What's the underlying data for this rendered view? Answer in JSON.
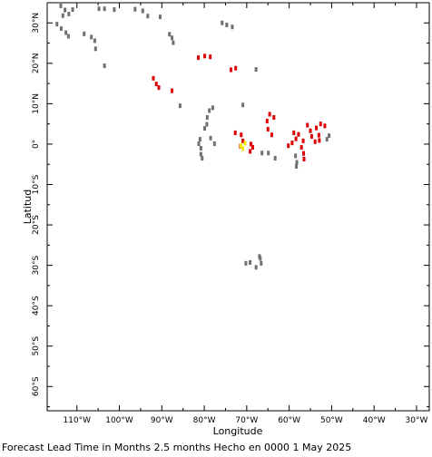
{
  "chart_data": {
    "type": "scatter",
    "title": "",
    "xlabel": "Longitude",
    "ylabel": "Latitud",
    "xlim": [
      -117,
      -27
    ],
    "ylim": [
      -66,
      35
    ],
    "x_ticks": [
      {
        "value": -110,
        "label": "110°W"
      },
      {
        "value": -100,
        "label": "100°W"
      },
      {
        "value": -90,
        "label": "90°W"
      },
      {
        "value": -80,
        "label": "80°W"
      },
      {
        "value": -70,
        "label": "70°W"
      },
      {
        "value": -60,
        "label": "60°W"
      },
      {
        "value": -50,
        "label": "50°W"
      },
      {
        "value": -40,
        "label": "40°W"
      },
      {
        "value": -30,
        "label": "30°W"
      }
    ],
    "y_ticks": [
      {
        "value": 30,
        "label": "30°N"
      },
      {
        "value": 20,
        "label": "20°N"
      },
      {
        "value": 10,
        "label": "10°N"
      },
      {
        "value": 0,
        "label": "0°"
      },
      {
        "value": -10,
        "label": "10°S"
      },
      {
        "value": -20,
        "label": "20°S"
      },
      {
        "value": -30,
        "label": "30°S"
      },
      {
        "value": -40,
        "label": "40°S"
      },
      {
        "value": -50,
        "label": "50°S"
      },
      {
        "value": -60,
        "label": "60°S"
      }
    ],
    "grid": false,
    "series": [
      {
        "color": "#707070",
        "points": [
          [
            -113.8,
            34.2
          ],
          [
            -112.8,
            33.2
          ],
          [
            -113.3,
            31.8
          ],
          [
            -111.9,
            32.2
          ],
          [
            -111.0,
            33.3
          ],
          [
            -114.7,
            29.7
          ],
          [
            -113.7,
            28.6
          ],
          [
            -112.6,
            27.6
          ],
          [
            -112.0,
            26.7
          ],
          [
            -108.3,
            27.3
          ],
          [
            -106.6,
            26.5
          ],
          [
            -105.8,
            25.6
          ],
          [
            -105.6,
            23.6
          ],
          [
            -103.5,
            19.4
          ],
          [
            -104.8,
            33.5
          ],
          [
            -103.5,
            33.5
          ],
          [
            -101.2,
            33.3
          ],
          [
            -96.3,
            33.4
          ],
          [
            -94.5,
            33.0
          ],
          [
            -93.3,
            31.7
          ],
          [
            -90.4,
            31.5
          ],
          [
            -88.2,
            27.2
          ],
          [
            -87.6,
            26.3
          ],
          [
            -87.3,
            25.1
          ],
          [
            -75.8,
            30.0
          ],
          [
            -74.7,
            29.5
          ],
          [
            -73.4,
            29.0
          ],
          [
            -85.7,
            9.5
          ],
          [
            -70.9,
            9.7
          ],
          [
            -67.8,
            18.5
          ],
          [
            -78.0,
            9.0
          ],
          [
            -78.8,
            8.3
          ],
          [
            -79.3,
            6.6
          ],
          [
            -79.4,
            4.9
          ],
          [
            -79.9,
            3.9
          ],
          [
            -78.5,
            1.5
          ],
          [
            -77.6,
            0.1
          ],
          [
            -81.0,
            1.2
          ],
          [
            -81.3,
            0.1
          ],
          [
            -80.8,
            -1.0
          ],
          [
            -80.8,
            -2.5
          ],
          [
            -80.5,
            -3.5
          ],
          [
            -66.4,
            -2.2
          ],
          [
            -64.9,
            -2.2
          ],
          [
            -63.3,
            -3.5
          ],
          [
            -58.5,
            -2.9
          ],
          [
            -58.2,
            -4.5
          ],
          [
            -58.3,
            -5.5
          ],
          [
            -51.1,
            1.2
          ],
          [
            -50.6,
            2.1
          ],
          [
            -67.0,
            -27.8
          ],
          [
            -66.6,
            -29.5
          ],
          [
            -67.8,
            -30.5
          ],
          [
            -69.2,
            -29.3
          ],
          [
            -70.2,
            -29.5
          ],
          [
            -66.8,
            -28.3
          ]
        ]
      },
      {
        "color": "#dd0000",
        "points": [
          [
            -92.0,
            16.3
          ],
          [
            -91.3,
            14.9
          ],
          [
            -90.7,
            14.0
          ],
          [
            -87.6,
            13.2
          ],
          [
            -81.4,
            21.4
          ],
          [
            -79.9,
            21.8
          ],
          [
            -78.6,
            21.6
          ],
          [
            -73.7,
            18.4
          ],
          [
            -72.6,
            18.8
          ],
          [
            -72.7,
            2.8
          ],
          [
            -71.3,
            2.3
          ],
          [
            -70.9,
            0.8
          ],
          [
            -69.0,
            0.0
          ],
          [
            -68.6,
            -0.8
          ],
          [
            -69.2,
            -1.8
          ],
          [
            -71.5,
            -0.5
          ],
          [
            -64.6,
            7.4
          ],
          [
            -63.6,
            6.6
          ],
          [
            -65.2,
            5.7
          ],
          [
            -65.0,
            3.7
          ],
          [
            -64.1,
            2.3
          ],
          [
            -60.2,
            -0.4
          ],
          [
            -59.3,
            0.3
          ],
          [
            -58.4,
            1.3
          ],
          [
            -58.9,
            2.8
          ],
          [
            -57.8,
            2.4
          ],
          [
            -56.7,
            0.8
          ],
          [
            -57.1,
            -0.8
          ],
          [
            -56.6,
            -2.3
          ],
          [
            -56.5,
            -3.7
          ],
          [
            -55.7,
            4.7
          ],
          [
            -55.0,
            3.3
          ],
          [
            -54.7,
            1.9
          ],
          [
            -53.9,
            0.6
          ],
          [
            -53.0,
            2.2
          ],
          [
            -53.6,
            4.0
          ],
          [
            -52.6,
            5.0
          ],
          [
            -51.6,
            4.5
          ],
          [
            -52.9,
            0.9
          ]
        ]
      },
      {
        "color": "#f0e400",
        "points": [
          [
            -71.4,
            -0.4
          ],
          [
            -70.9,
            -1.1
          ],
          [
            -70.4,
            0.2
          ]
        ]
      }
    ]
  },
  "caption": {
    "text": "Forecast Lead Time in Months 2.5 months Hecho en 0000 1 May 2025"
  }
}
